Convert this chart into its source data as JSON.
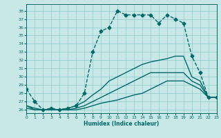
{
  "xlabel": "Humidex (Indice chaleur)",
  "bg_color": "#c8e8e8",
  "grid_color": "#98d0d0",
  "line_color": "#006868",
  "xlim": [
    0,
    23
  ],
  "ylim": [
    25.6,
    38.8
  ],
  "yticks": [
    26,
    27,
    28,
    29,
    30,
    31,
    32,
    33,
    34,
    35,
    36,
    37,
    38
  ],
  "xticks": [
    0,
    1,
    2,
    3,
    4,
    5,
    6,
    7,
    8,
    9,
    10,
    11,
    12,
    13,
    14,
    15,
    16,
    17,
    18,
    19,
    20,
    21,
    22,
    23
  ],
  "series": [
    {
      "x": [
        0,
        1,
        2,
        3,
        4,
        5,
        6,
        7,
        8,
        9,
        10,
        11,
        12,
        13,
        14,
        15,
        16,
        17,
        18,
        19,
        20,
        21,
        22,
        23
      ],
      "y": [
        28.5,
        27.0,
        26.0,
        26.2,
        26.0,
        26.2,
        26.5,
        28.0,
        33.0,
        35.5,
        36.0,
        38.0,
        37.5,
        37.5,
        37.5,
        37.5,
        36.5,
        37.5,
        37.0,
        36.5,
        32.5,
        30.5,
        27.5,
        27.5
      ],
      "marker": "D",
      "marker_size": 2.5,
      "line_width": 1.0,
      "linestyle": "--"
    },
    {
      "x": [
        0,
        1,
        2,
        3,
        4,
        5,
        6,
        7,
        8,
        9,
        10,
        11,
        12,
        13,
        14,
        15,
        16,
        17,
        18,
        19,
        20,
        21,
        22,
        23
      ],
      "y": [
        26.5,
        26.2,
        26.0,
        26.0,
        26.0,
        26.2,
        26.5,
        27.0,
        27.8,
        28.5,
        29.5,
        30.0,
        30.5,
        31.0,
        31.5,
        31.8,
        32.0,
        32.2,
        32.5,
        32.5,
        30.0,
        29.5,
        27.5,
        27.5
      ],
      "marker": null,
      "marker_size": 0,
      "line_width": 1.0,
      "linestyle": "-"
    },
    {
      "x": [
        0,
        1,
        2,
        3,
        4,
        5,
        6,
        7,
        8,
        9,
        10,
        11,
        12,
        13,
        14,
        15,
        16,
        17,
        18,
        19,
        20,
        21,
        22,
        23
      ],
      "y": [
        26.5,
        26.0,
        26.0,
        26.0,
        26.0,
        26.0,
        26.2,
        26.5,
        27.0,
        27.5,
        28.0,
        28.5,
        29.0,
        29.5,
        30.0,
        30.5,
        30.5,
        30.5,
        30.5,
        30.5,
        29.5,
        29.0,
        27.5,
        27.5
      ],
      "marker": null,
      "marker_size": 0,
      "line_width": 1.0,
      "linestyle": "-"
    },
    {
      "x": [
        0,
        1,
        2,
        3,
        4,
        5,
        6,
        7,
        8,
        9,
        10,
        11,
        12,
        13,
        14,
        15,
        16,
        17,
        18,
        19,
        20,
        21,
        22,
        23
      ],
      "y": [
        26.2,
        26.0,
        26.0,
        26.0,
        26.0,
        26.0,
        26.0,
        26.2,
        26.5,
        26.8,
        27.0,
        27.2,
        27.5,
        27.8,
        28.0,
        28.5,
        29.0,
        29.5,
        29.5,
        29.5,
        29.0,
        28.5,
        27.5,
        27.5
      ],
      "marker": null,
      "marker_size": 0,
      "line_width": 1.0,
      "linestyle": "-"
    }
  ]
}
